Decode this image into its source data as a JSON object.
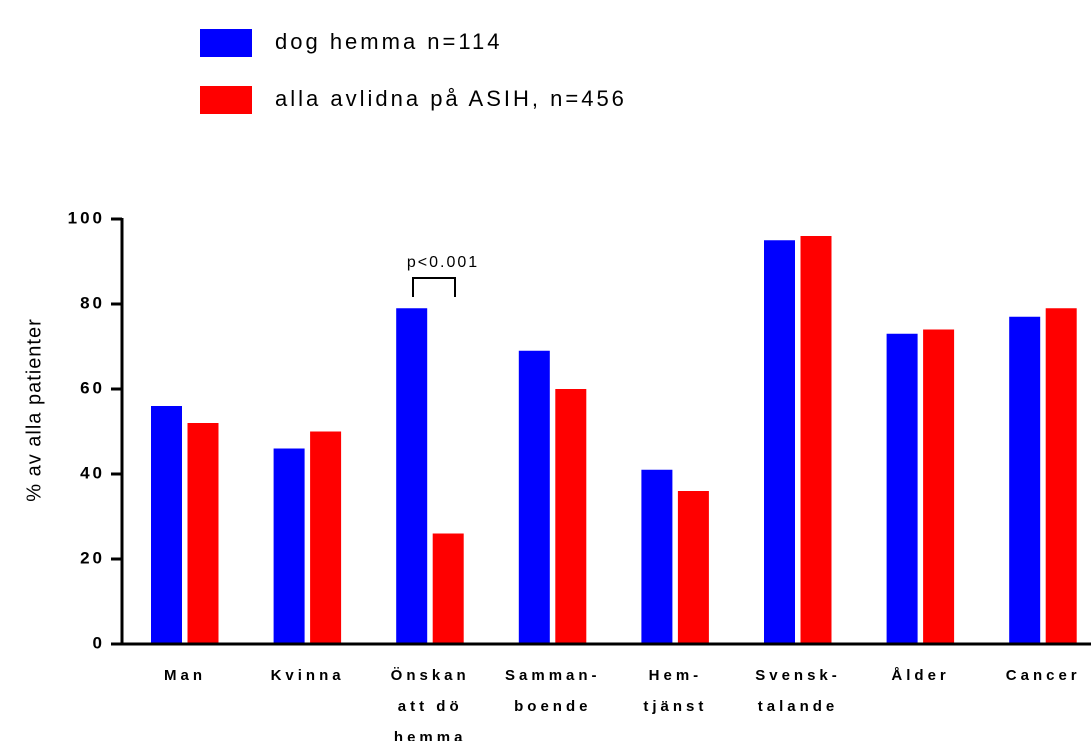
{
  "chart_data": {
    "type": "bar",
    "categories": [
      "Man",
      "Kvinna",
      "Önskan\natt dö\nhemma",
      "Samman-\nboende",
      "Hem-\ntjänst",
      "Svensk-\ntalande",
      "Ålder",
      "Cancer"
    ],
    "series": [
      {
        "name": "dog hemma n=114",
        "color": "#0000ff",
        "values": [
          56,
          46,
          79,
          69,
          41,
          95,
          73,
          77
        ]
      },
      {
        "name": "alla avlidna på ASIH, n=456",
        "color": "#ff0000",
        "values": [
          52,
          50,
          26,
          60,
          36,
          96,
          74,
          79
        ]
      }
    ],
    "ylabel": "% av alla patienter",
    "ylim": [
      0,
      100
    ],
    "yticks": [
      0,
      20,
      40,
      60,
      80,
      100
    ],
    "annotations": [
      "p<0.001"
    ],
    "legend": "top-left"
  }
}
